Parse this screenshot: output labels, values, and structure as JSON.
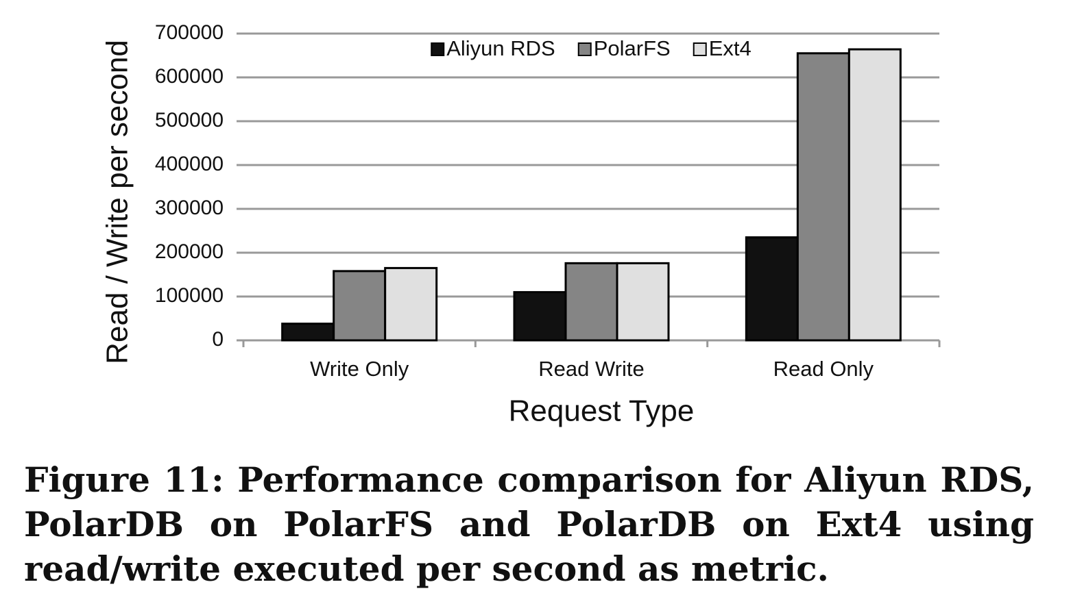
{
  "chart_data": {
    "type": "bar",
    "y_label": "Read / Write per second",
    "x_label": "Request Type",
    "caption": "Figure 11: Performance comparison for Aliyun RDS, PolarDB on PolarFS and PolarDB on Ext4 using read/write executed per second as metric.",
    "categories": [
      "Write Only",
      "Read Write",
      "Read Only"
    ],
    "series": [
      {
        "name": "Aliyun RDS",
        "color": "#111111",
        "values": [
          38000,
          110000,
          235000
        ]
      },
      {
        "name": "PolarFS",
        "color": "#858585",
        "values": [
          158000,
          176000,
          655000
        ]
      },
      {
        "name": "Ext4",
        "color": "#e0e0e0",
        "values": [
          165000,
          176000,
          664000
        ]
      }
    ],
    "ylim": [
      0,
      700000
    ],
    "yticks": [
      0,
      100000,
      200000,
      300000,
      400000,
      500000,
      600000,
      700000
    ],
    "grid": true,
    "legend": "top"
  }
}
